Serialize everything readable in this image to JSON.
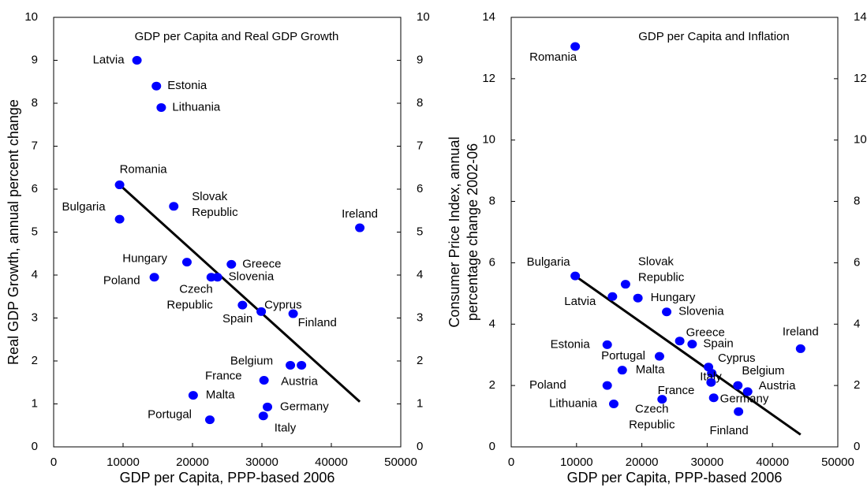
{
  "chart_data": [
    {
      "type": "scatter",
      "title": "GDP per Capita and Real GDP Growth",
      "x_label": "GDP per Capita, PPP-based 2006",
      "y_label": "Real GDP Growth, annual percent change",
      "color": "#0000ff",
      "trend_color": "#000000",
      "xlim": [
        0,
        50000
      ],
      "xticks": [
        0,
        10000,
        20000,
        30000,
        40000,
        50000
      ],
      "ylim": [
        0,
        10
      ],
      "yticks": [
        0,
        1,
        2,
        3,
        4,
        5,
        6,
        7,
        8,
        9,
        10
      ],
      "labels": [
        "Latvia",
        "Estonia",
        "Lithuania",
        "Romania",
        "Slovak Republic",
        "Bulgaria",
        "Ireland",
        "Hungary",
        "Greece",
        "Poland",
        "Czech Republic",
        "Slovenia",
        "Spain",
        "Cyprus",
        "Finland",
        "Belgium",
        "Austria",
        "France",
        "Malta",
        "Germany",
        "Italy",
        "Portugal"
      ],
      "x": [
        12000,
        14800,
        15500,
        9500,
        17300,
        9500,
        44100,
        19200,
        25600,
        14500,
        22700,
        23600,
        27200,
        29900,
        34500,
        34100,
        35700,
        30300,
        20100,
        30800,
        30200,
        22500
      ],
      "y": [
        9.0,
        8.4,
        7.9,
        6.1,
        5.6,
        5.3,
        5.1,
        4.3,
        4.25,
        3.95,
        3.95,
        3.95,
        3.3,
        3.15,
        3.1,
        1.9,
        1.9,
        1.55,
        1.2,
        0.93,
        0.72,
        0.63
      ],
      "trend": {
        "x": [
          9500,
          44100
        ],
        "y": [
          6.1,
          1.05
        ]
      }
    },
    {
      "type": "scatter",
      "title": "GDP per Capita and Inflation",
      "x_label": "GDP per Capita, PPP-based 2006",
      "y_label": "Consumer Price Index, annual percentage change 2002-06",
      "color": "#0000ff",
      "trend_color": "#000000",
      "xlim": [
        0,
        50000
      ],
      "xticks": [
        0,
        10000,
        20000,
        30000,
        40000,
        50000
      ],
      "ylim": [
        0,
        14
      ],
      "yticks": [
        0,
        2,
        4,
        6,
        8,
        10,
        12,
        14
      ],
      "labels": [
        "Romania",
        "Bulgaria",
        "Slovak Republic",
        "Latvia",
        "Hungary",
        "Slovenia",
        "Greece",
        "Spain",
        "Estonia",
        "Ireland",
        "Cyprus",
        "Italy",
        "Portugal",
        "Malta",
        "Belgium",
        "Austria",
        "Poland",
        "France",
        "Germany",
        "Czech Republic",
        "Lithuania",
        "Finland"
      ],
      "x": [
        9800,
        9800,
        17500,
        15500,
        19400,
        23800,
        25800,
        27700,
        14700,
        44300,
        30200,
        30700,
        22700,
        17000,
        34700,
        36200,
        14700,
        30600,
        31000,
        23100,
        15700,
        34800
      ],
      "y": [
        13.05,
        5.57,
        5.3,
        4.9,
        4.85,
        4.4,
        3.45,
        3.35,
        3.33,
        3.2,
        2.6,
        2.4,
        2.95,
        2.5,
        2.0,
        1.8,
        2.0,
        2.1,
        1.6,
        1.55,
        1.4,
        1.15
      ],
      "trend": {
        "x": [
          9800,
          44300
        ],
        "y": [
          5.57,
          0.4
        ]
      }
    }
  ]
}
